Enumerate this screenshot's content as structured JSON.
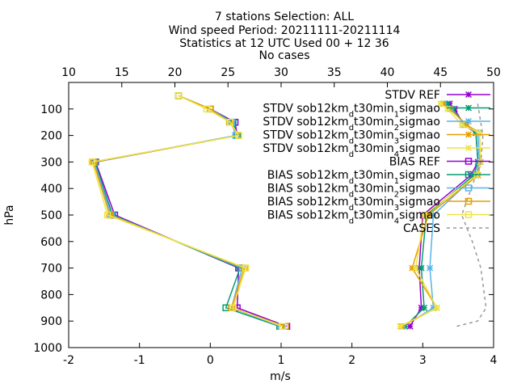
{
  "chart_data": {
    "type": "line",
    "title_lines": [
      "7 stations Selection: ALL",
      "Wind speed  Period: 20211111-20211114",
      "Statistics at 12 UTC  Used 00 + 12 36",
      "No cases"
    ],
    "xlabel": "m/s",
    "ylabel": "hPa",
    "xlim": [
      -2,
      4
    ],
    "ylim": [
      1000,
      0
    ],
    "x2lim": [
      10,
      50
    ],
    "xticks": [
      "-2",
      "-1",
      "0",
      "1",
      "2",
      "3",
      "4"
    ],
    "x2ticks": [
      "10",
      "15",
      "20",
      "25",
      "30",
      "35",
      "40",
      "45",
      "50"
    ],
    "yticks": [
      "100",
      "200",
      "300",
      "400",
      "500",
      "600",
      "700",
      "800",
      "900",
      "1000"
    ],
    "grid": false,
    "legend_position": "top-right",
    "series": [
      {
        "name": "STDV REF",
        "color": "#9400d3",
        "marker": "star",
        "dash": "none",
        "points": [
          [
            3.38,
            80
          ],
          [
            3.45,
            100
          ],
          [
            3.58,
            160
          ],
          [
            3.75,
            190
          ],
          [
            3.78,
            300
          ],
          [
            3.68,
            350
          ],
          [
            3.0,
            500
          ],
          [
            2.95,
            700
          ],
          [
            2.98,
            850
          ],
          [
            2.82,
            920
          ]
        ]
      },
      {
        "name": "STDV sob12km_d t30min_1 sigmao",
        "color": "#009e73",
        "marker": "star",
        "dash": "none",
        "points": [
          [
            3.35,
            80
          ],
          [
            3.42,
            100
          ],
          [
            3.6,
            160
          ],
          [
            3.75,
            190
          ],
          [
            3.78,
            300
          ],
          [
            3.72,
            350
          ],
          [
            3.05,
            500
          ],
          [
            2.98,
            700
          ],
          [
            3.02,
            850
          ],
          [
            2.75,
            920
          ]
        ]
      },
      {
        "name": "STDV sob12km_d t30min_2 sigmao",
        "color": "#56b4e9",
        "marker": "star",
        "dash": "none",
        "points": [
          [
            3.3,
            80
          ],
          [
            3.4,
            100
          ],
          [
            3.6,
            160
          ],
          [
            3.78,
            190
          ],
          [
            3.8,
            300
          ],
          [
            3.75,
            350
          ],
          [
            3.15,
            500
          ],
          [
            3.1,
            700
          ],
          [
            3.15,
            850
          ],
          [
            2.72,
            920
          ]
        ]
      },
      {
        "name": "STDV sob12km_d t30min_3 sigmao",
        "color": "#e69f00",
        "marker": "star",
        "dash": "none",
        "points": [
          [
            3.28,
            80
          ],
          [
            3.38,
            100
          ],
          [
            3.62,
            160
          ],
          [
            3.8,
            190
          ],
          [
            3.82,
            300
          ],
          [
            3.78,
            350
          ],
          [
            3.08,
            500
          ],
          [
            2.85,
            700
          ],
          [
            3.2,
            850
          ],
          [
            2.7,
            920
          ]
        ]
      },
      {
        "name": "STDV sob12km_d t30min_4 sigmao",
        "color": "#f0e442",
        "marker": "star",
        "dash": "none",
        "points": [
          [
            3.25,
            80
          ],
          [
            3.35,
            100
          ],
          [
            3.55,
            160
          ],
          [
            3.8,
            190
          ],
          [
            3.82,
            300
          ],
          [
            3.76,
            350
          ],
          [
            3.02,
            500
          ],
          [
            2.9,
            700
          ],
          [
            3.2,
            850
          ],
          [
            2.68,
            920
          ]
        ]
      },
      {
        "name": "BIAS REF",
        "color": "#9400d3",
        "marker": "square",
        "dash": "none",
        "points": [
          [
            -0.45,
            50
          ],
          [
            0.0,
            100
          ],
          [
            0.35,
            150
          ],
          [
            0.38,
            200
          ],
          [
            -1.62,
            300
          ],
          [
            -1.35,
            500
          ],
          [
            0.4,
            700
          ],
          [
            0.38,
            850
          ],
          [
            1.08,
            920
          ]
        ]
      },
      {
        "name": "BIAS sob12km_d t30min_1 sigmao",
        "color": "#009e73",
        "marker": "square",
        "dash": "none",
        "points": [
          [
            -0.45,
            50
          ],
          [
            0.0,
            100
          ],
          [
            0.32,
            150
          ],
          [
            0.38,
            200
          ],
          [
            -1.63,
            300
          ],
          [
            -1.38,
            500
          ],
          [
            0.42,
            700
          ],
          [
            0.22,
            850
          ],
          [
            0.98,
            920
          ]
        ]
      },
      {
        "name": "BIAS sob12km_d t30min_2 sigmao",
        "color": "#56b4e9",
        "marker": "square",
        "dash": "none",
        "points": [
          [
            -0.45,
            50
          ],
          [
            0.0,
            100
          ],
          [
            0.3,
            150
          ],
          [
            0.36,
            200
          ],
          [
            -1.64,
            300
          ],
          [
            -1.4,
            500
          ],
          [
            0.45,
            700
          ],
          [
            0.3,
            850
          ],
          [
            1.0,
            920
          ]
        ]
      },
      {
        "name": "BIAS sob12km_d t30min_3 sigmao",
        "color": "#e69f00",
        "marker": "square",
        "dash": "none",
        "points": [
          [
            -0.45,
            50
          ],
          [
            0.0,
            100
          ],
          [
            0.27,
            150
          ],
          [
            0.4,
            200
          ],
          [
            -1.65,
            300
          ],
          [
            -1.42,
            500
          ],
          [
            0.48,
            700
          ],
          [
            0.3,
            850
          ],
          [
            1.06,
            920
          ]
        ]
      },
      {
        "name": "BIAS sob12km_d t30min_4 sigmao",
        "color": "#f0e442",
        "marker": "square",
        "dash": "none",
        "points": [
          [
            -0.45,
            50
          ],
          [
            -0.05,
            100
          ],
          [
            0.28,
            150
          ],
          [
            0.4,
            200
          ],
          [
            -1.67,
            300
          ],
          [
            -1.45,
            500
          ],
          [
            0.5,
            700
          ],
          [
            0.32,
            850
          ],
          [
            1.02,
            920
          ]
        ]
      },
      {
        "name": "CASES",
        "color": "#999999",
        "marker": "none",
        "dash": "dashed",
        "axis": "x2",
        "points": [
          [
            48.5,
            80
          ],
          [
            49,
            200
          ],
          [
            48.8,
            300
          ],
          [
            47,
            500
          ],
          [
            48,
            600
          ],
          [
            48.8,
            700
          ],
          [
            49.3,
            850
          ],
          [
            48.5,
            900
          ],
          [
            46.5,
            920
          ]
        ]
      }
    ]
  }
}
